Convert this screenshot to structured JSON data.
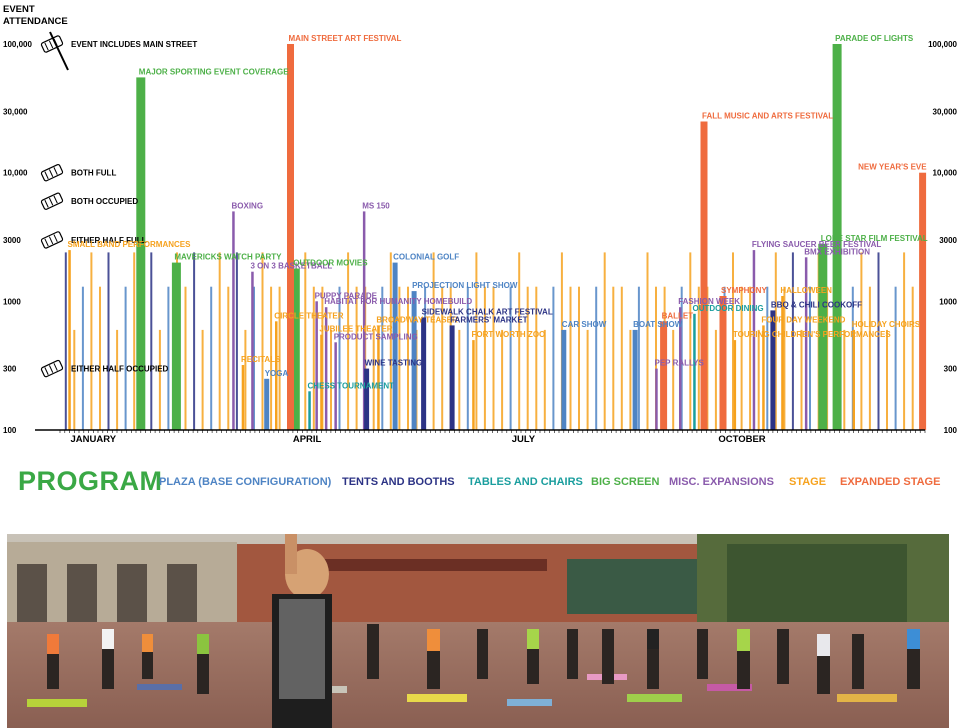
{
  "colors": {
    "plaza": "#4e84c4",
    "tents": "#2c3385",
    "tables": "#1a9e9e",
    "screen": "#4db048",
    "misc": "#8a5bac",
    "stage": "#f6a21e",
    "expanded": "#ef6b3e"
  },
  "chart_data": {
    "type": "bar",
    "ylabel": "EVENT ATTENDANCE",
    "yscale": "log",
    "ylim": [
      100,
      100000
    ],
    "yticks": [
      "100",
      "300",
      "1000",
      "3000",
      "10,000",
      "30,000",
      "100,000"
    ],
    "xlim": [
      1,
      365
    ],
    "x_month_labels": [
      "JANUARY",
      "APRIL",
      "JULY",
      "OCTOBER"
    ],
    "reference_levels": [
      {
        "label": "EVENT INCLUDES MAIN STREET",
        "value": 100000
      },
      {
        "label": "BOTH FULL",
        "value": 10000
      },
      {
        "label": "BOTH OCCUPIED",
        "value": 6000
      },
      {
        "label": "EITHER HALF FULL",
        "value": 3000
      },
      {
        "label": "EITHER HALF OCCUPIED",
        "value": 300
      }
    ],
    "events": [
      {
        "label": "MAJOR SPORTING EVENT COVERAGE",
        "x": 35,
        "value": 55000,
        "category": "screen"
      },
      {
        "label": "SMALL BAND PERFORMANCES",
        "x": 5,
        "value": 2500,
        "category": "stage"
      },
      {
        "label": "MAVERICKS WATCH PARTY",
        "x": 50,
        "value": 2000,
        "category": "screen"
      },
      {
        "label": "BOXING",
        "x": 74,
        "value": 5000,
        "category": "misc"
      },
      {
        "label": "3 ON 3 BASKETBALL",
        "x": 82,
        "value": 1700,
        "category": "misc"
      },
      {
        "label": "OUTDOOR MOVIES",
        "x": 100,
        "value": 1800,
        "category": "screen"
      },
      {
        "label": "MAIN STREET ART FESTIVAL",
        "x": 98,
        "value": 100000,
        "category": "expanded"
      },
      {
        "label": "CIRCLE THEATER",
        "x": 92,
        "value": 700,
        "category": "stage"
      },
      {
        "label": "RECITALS",
        "x": 78,
        "value": 320,
        "category": "stage"
      },
      {
        "label": "YOGA",
        "x": 88,
        "value": 250,
        "category": "plaza"
      },
      {
        "label": "PUPPY PARADE",
        "x": 109,
        "value": 1000,
        "category": "misc"
      },
      {
        "label": "HABITAT FOR HUMANITY HOMEBUILD",
        "x": 113,
        "value": 900,
        "category": "misc"
      },
      {
        "label": "JUBILEE THEATER",
        "x": 111,
        "value": 550,
        "category": "stage"
      },
      {
        "label": "PRODUCT SAMPLING",
        "x": 117,
        "value": 480,
        "category": "misc"
      },
      {
        "label": "CHESS TOURNAMENT",
        "x": 106,
        "value": 200,
        "category": "tables"
      },
      {
        "label": "MS 150",
        "x": 129,
        "value": 5000,
        "category": "misc"
      },
      {
        "label": "BROADWAY TEASER",
        "x": 135,
        "value": 650,
        "category": "stage"
      },
      {
        "label": "WINE TASTING",
        "x": 130,
        "value": 300,
        "category": "tents"
      },
      {
        "label": "COLONIAL GOLF",
        "x": 142,
        "value": 2000,
        "category": "plaza"
      },
      {
        "label": "PROJECTION LIGHT SHOW",
        "x": 150,
        "value": 1200,
        "category": "plaza"
      },
      {
        "label": "SIDEWALK CHALK ART FESTIVAL",
        "x": 154,
        "value": 750,
        "category": "tents"
      },
      {
        "label": "FARMERS' MARKET",
        "x": 166,
        "value": 650,
        "category": "tents"
      },
      {
        "label": "FORT WORTH ZOO",
        "x": 175,
        "value": 500,
        "category": "stage"
      },
      {
        "label": "CAR SHOW",
        "x": 213,
        "value": 600,
        "category": "plaza"
      },
      {
        "label": "BOAT SHOW",
        "x": 243,
        "value": 600,
        "category": "plaza"
      },
      {
        "label": "BALLET",
        "x": 255,
        "value": 700,
        "category": "expanded"
      },
      {
        "label": "FASHION WEEK",
        "x": 262,
        "value": 900,
        "category": "misc"
      },
      {
        "label": "OUTDOOR DINING",
        "x": 268,
        "value": 800,
        "category": "tables"
      },
      {
        "label": "PEP RALLYS",
        "x": 252,
        "value": 300,
        "category": "misc"
      },
      {
        "label": "FALL MUSIC AND ARTS FESTIVAL",
        "x": 272,
        "value": 25000,
        "category": "expanded"
      },
      {
        "label": "SYMPHONY",
        "x": 280,
        "value": 1100,
        "category": "expanded"
      },
      {
        "label": "TOURING CHILDREN'S PERFORMANCES",
        "x": 285,
        "value": 500,
        "category": "stage"
      },
      {
        "label": "FLYING SAUCER BEER FESTIVAL",
        "x": 293,
        "value": 2500,
        "category": "misc"
      },
      {
        "label": "BBQ & CHILI COOKOFF",
        "x": 301,
        "value": 850,
        "category": "tents"
      },
      {
        "label": "FOUR DAY WEEKEND",
        "x": 297,
        "value": 650,
        "category": "stage"
      },
      {
        "label": "HALLOWEEN",
        "x": 305,
        "value": 1100,
        "category": "stage"
      },
      {
        "label": "BMX EXHIBITION",
        "x": 315,
        "value": 2200,
        "category": "misc"
      },
      {
        "label": "LONE STAR FILM FESTIVAL",
        "x": 322,
        "value": 2800,
        "category": "screen"
      },
      {
        "label": "PARADE OF LIGHTS",
        "x": 328,
        "value": 100000,
        "category": "screen"
      },
      {
        "label": "HOLIDAY CHOIRS",
        "x": 335,
        "value": 600,
        "category": "stage"
      },
      {
        "label": "NEW YEAR'S EVE",
        "x": 364,
        "value": 10000,
        "category": "expanded"
      }
    ]
  },
  "legend": {
    "title": "PROGRAM",
    "items": [
      {
        "label": "PLAZA (BASE CONFIGURATION)",
        "key": "plaza"
      },
      {
        "label": "TENTS AND BOOTHS",
        "key": "tents"
      },
      {
        "label": "TABLES AND CHAIRS",
        "key": "tables"
      },
      {
        "label": "BIG SCREEN",
        "key": "screen"
      },
      {
        "label": "MISC. EXPANSIONS",
        "key": "misc"
      },
      {
        "label": "STAGE",
        "key": "stage"
      },
      {
        "label": "EXPANDED STAGE",
        "key": "expanded"
      }
    ]
  }
}
